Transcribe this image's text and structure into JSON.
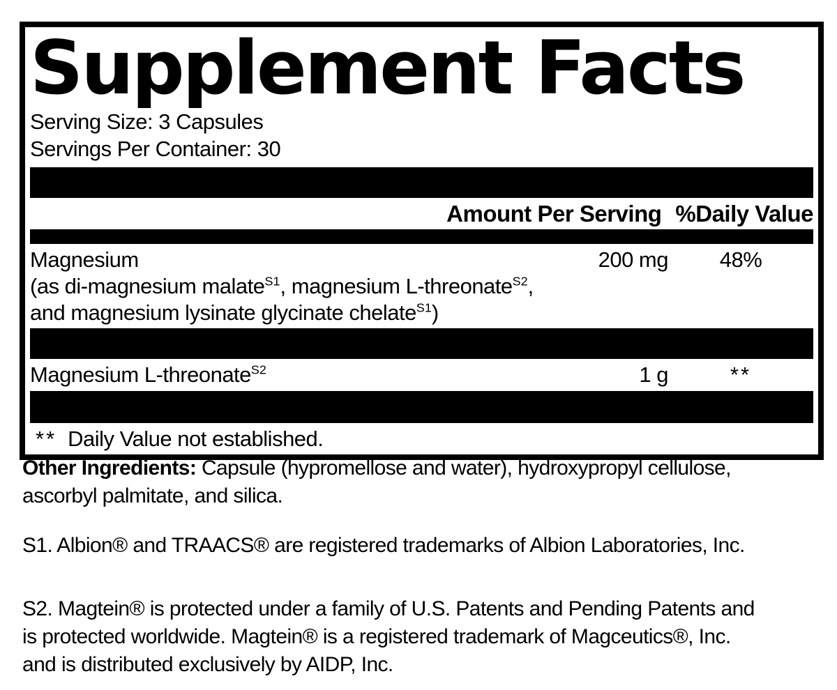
{
  "panel": {
    "title": "Supplement Facts",
    "serving_size": "Serving Size: 3 Capsules",
    "servings_per_container": "Servings Per Container: 30",
    "columns": {
      "amount": "Amount Per Serving",
      "daily_value": "%Daily Value"
    },
    "rows": [
      {
        "name": "Magnesium",
        "amount": "200 mg",
        "daily_value": "48%",
        "detail1": {
          "t1": "(as di-magnesium malate",
          "sup1": "S1",
          "t2": ", magnesium L-threonate",
          "sup2": "S2",
          "t3": ","
        },
        "detail2": {
          "t1": "and magnesium lysinate glycinate chelate",
          "sup1": "S1",
          "t2": ")"
        }
      },
      {
        "name": "Magnesium L-threonate",
        "name_sup": "S2",
        "amount": "1 g",
        "daily_value": "**"
      }
    ],
    "footnote": {
      "stars": "**",
      "text": "Daily Value not established."
    }
  },
  "other_ingredients": {
    "label": "Other Ingredients:",
    "line1_rest": " Capsule (hypromellose and water), hydroxypropyl cellulose,",
    "line2": "ascorbyl palmitate, and silica."
  },
  "trademarks": {
    "s1_line1": "S1. Albion® and TRAACS® are registered trademarks of Albion Laboratories, Inc.",
    "s2_line1": "S2. Magtein® is protected under a family of U.S. Patents and Pending Patents and",
    "s2_line2": "is protected worldwide. Magtein® is a registered trademark of Magceutics®, Inc.",
    "s2_line3": "and is distributed exclusively by AIDP, Inc."
  },
  "colors": {
    "text": "#000000",
    "background": "#ffffff",
    "divider": "#000000"
  }
}
